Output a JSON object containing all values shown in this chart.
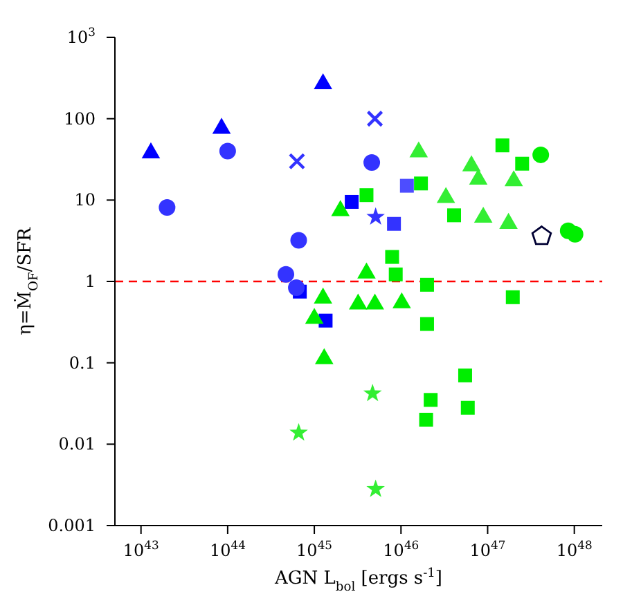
{
  "chart_data": {
    "type": "scatter",
    "xlabel": "AGN L$_{bol}$ [ergs s$^{-1}$]",
    "ylabel": "η=Ṁ$_{OF}$/SFR",
    "log": "xy",
    "grid": false,
    "legend": false,
    "xlim": [
      5e+42,
      2.1e+48
    ],
    "ylim": [
      0.001,
      1000
    ],
    "xticks": [
      {
        "value": 1e+43,
        "label": "10$^{43}$"
      },
      {
        "value": 1e+44,
        "label": "10$^{44}$"
      },
      {
        "value": 1e+45,
        "label": "10$^{45}$"
      },
      {
        "value": 1e+46,
        "label": "10$^{46}$"
      },
      {
        "value": 1e+47,
        "label": "10$^{47}$"
      },
      {
        "value": 1e+48,
        "label": "10$^{48}$"
      }
    ],
    "yticks": [
      0.001,
      0.01,
      0.1,
      1,
      10,
      100,
      {
        "value": 1000,
        "label": "10$^{3}$"
      }
    ],
    "ref_lines": [
      {
        "axis": "y",
        "value": 1,
        "label": null,
        "color": "#ff0000",
        "line_style": "dashed"
      }
    ],
    "series": [
      {
        "color": "#0000ff",
        "marker": "triangle",
        "x": [
          1.3e+43,
          8.5e+43,
          1.26e+45
        ],
        "values": [
          39,
          78,
          275
        ]
      },
      {
        "color": "#3333ff",
        "marker": "circle",
        "x": [
          2e+43,
          1e+44
        ],
        "values": [
          8.1,
          40
        ]
      },
      {
        "color": "#3333ff",
        "marker": "cross",
        "x": [
          6.3e+44,
          5e+45
        ],
        "values": [
          30,
          100
        ]
      },
      {
        "color": "#3333ff",
        "marker": "star",
        "x": [
          5.1e+45
        ],
        "values": [
          6.2
        ]
      },
      {
        "color": "#3333ff",
        "marker": "square",
        "x": [
          8.3e+45
        ],
        "values": [
          5.1
        ]
      },
      {
        "color": "#0000ff",
        "marker": "square",
        "x": [
          2.7e+45,
          6.8e+44,
          1.35e+45
        ],
        "values": [
          9.5,
          0.75,
          0.33
        ]
      },
      {
        "color": "#4d4dff",
        "marker": "square",
        "x": [
          1.17e+46
        ],
        "values": [
          15
        ]
      },
      {
        "color": "#3333ff",
        "marker": "circle",
        "x": [
          4.6e+45,
          6.6e+44,
          4.7e+44,
          6.2e+44
        ],
        "values": [
          29,
          3.2,
          1.22,
          0.84
        ]
      },
      {
        "color": "#00ee00",
        "marker": "square",
        "x": [
          4e+45,
          1.7e+46,
          1.48e+47,
          2.5e+47,
          4.1e+46,
          7.9e+45,
          8.7e+45,
          2e+46,
          1.95e+47,
          2e+46,
          5.5e+46,
          2.2e+46,
          5.9e+46,
          1.95e+46
        ],
        "values": [
          11.5,
          16,
          47,
          28,
          6.5,
          2.0,
          1.22,
          0.91,
          0.64,
          0.3,
          0.07,
          0.035,
          0.028,
          0.02
        ]
      },
      {
        "color": "#00ee00",
        "marker": "triangle",
        "x": [
          2e+45,
          4e+45,
          1e+45,
          3.2e+45,
          5e+45,
          1.02e+46,
          1.3e+45
        ],
        "values": [
          7.6,
          1.3,
          0.36,
          0.54,
          0.54,
          0.56,
          0.115
        ]
      },
      {
        "color": "#00ee00",
        "marker": "triangle",
        "x": [
          1.26e+45
        ],
        "values": [
          0.64
        ]
      },
      {
        "color": "#33ee33",
        "marker": "triangle",
        "x": [
          1.6e+46,
          6.5e+46,
          7.8e+46,
          2e+47,
          3.3e+46,
          8.9e+46,
          1.74e+47
        ],
        "values": [
          40,
          27,
          18.5,
          17.7,
          11,
          6.3,
          5.3
        ]
      },
      {
        "color": "#00ee00",
        "marker": "circle",
        "x": [
          4.1e+47,
          8.5e+47,
          1.02e+48
        ],
        "values": [
          36,
          4.2,
          3.8
        ]
      },
      {
        "color": "#000033",
        "x": [
          4.2e+47
        ],
        "values": [
          3.6
        ]
      },
      {
        "color": "#33ee33",
        "marker": "star",
        "x": [
          6.6e+44,
          4.7e+45,
          5.1e+45
        ],
        "values": [
          0.0138,
          0.042,
          0.0028
        ]
      }
    ]
  }
}
